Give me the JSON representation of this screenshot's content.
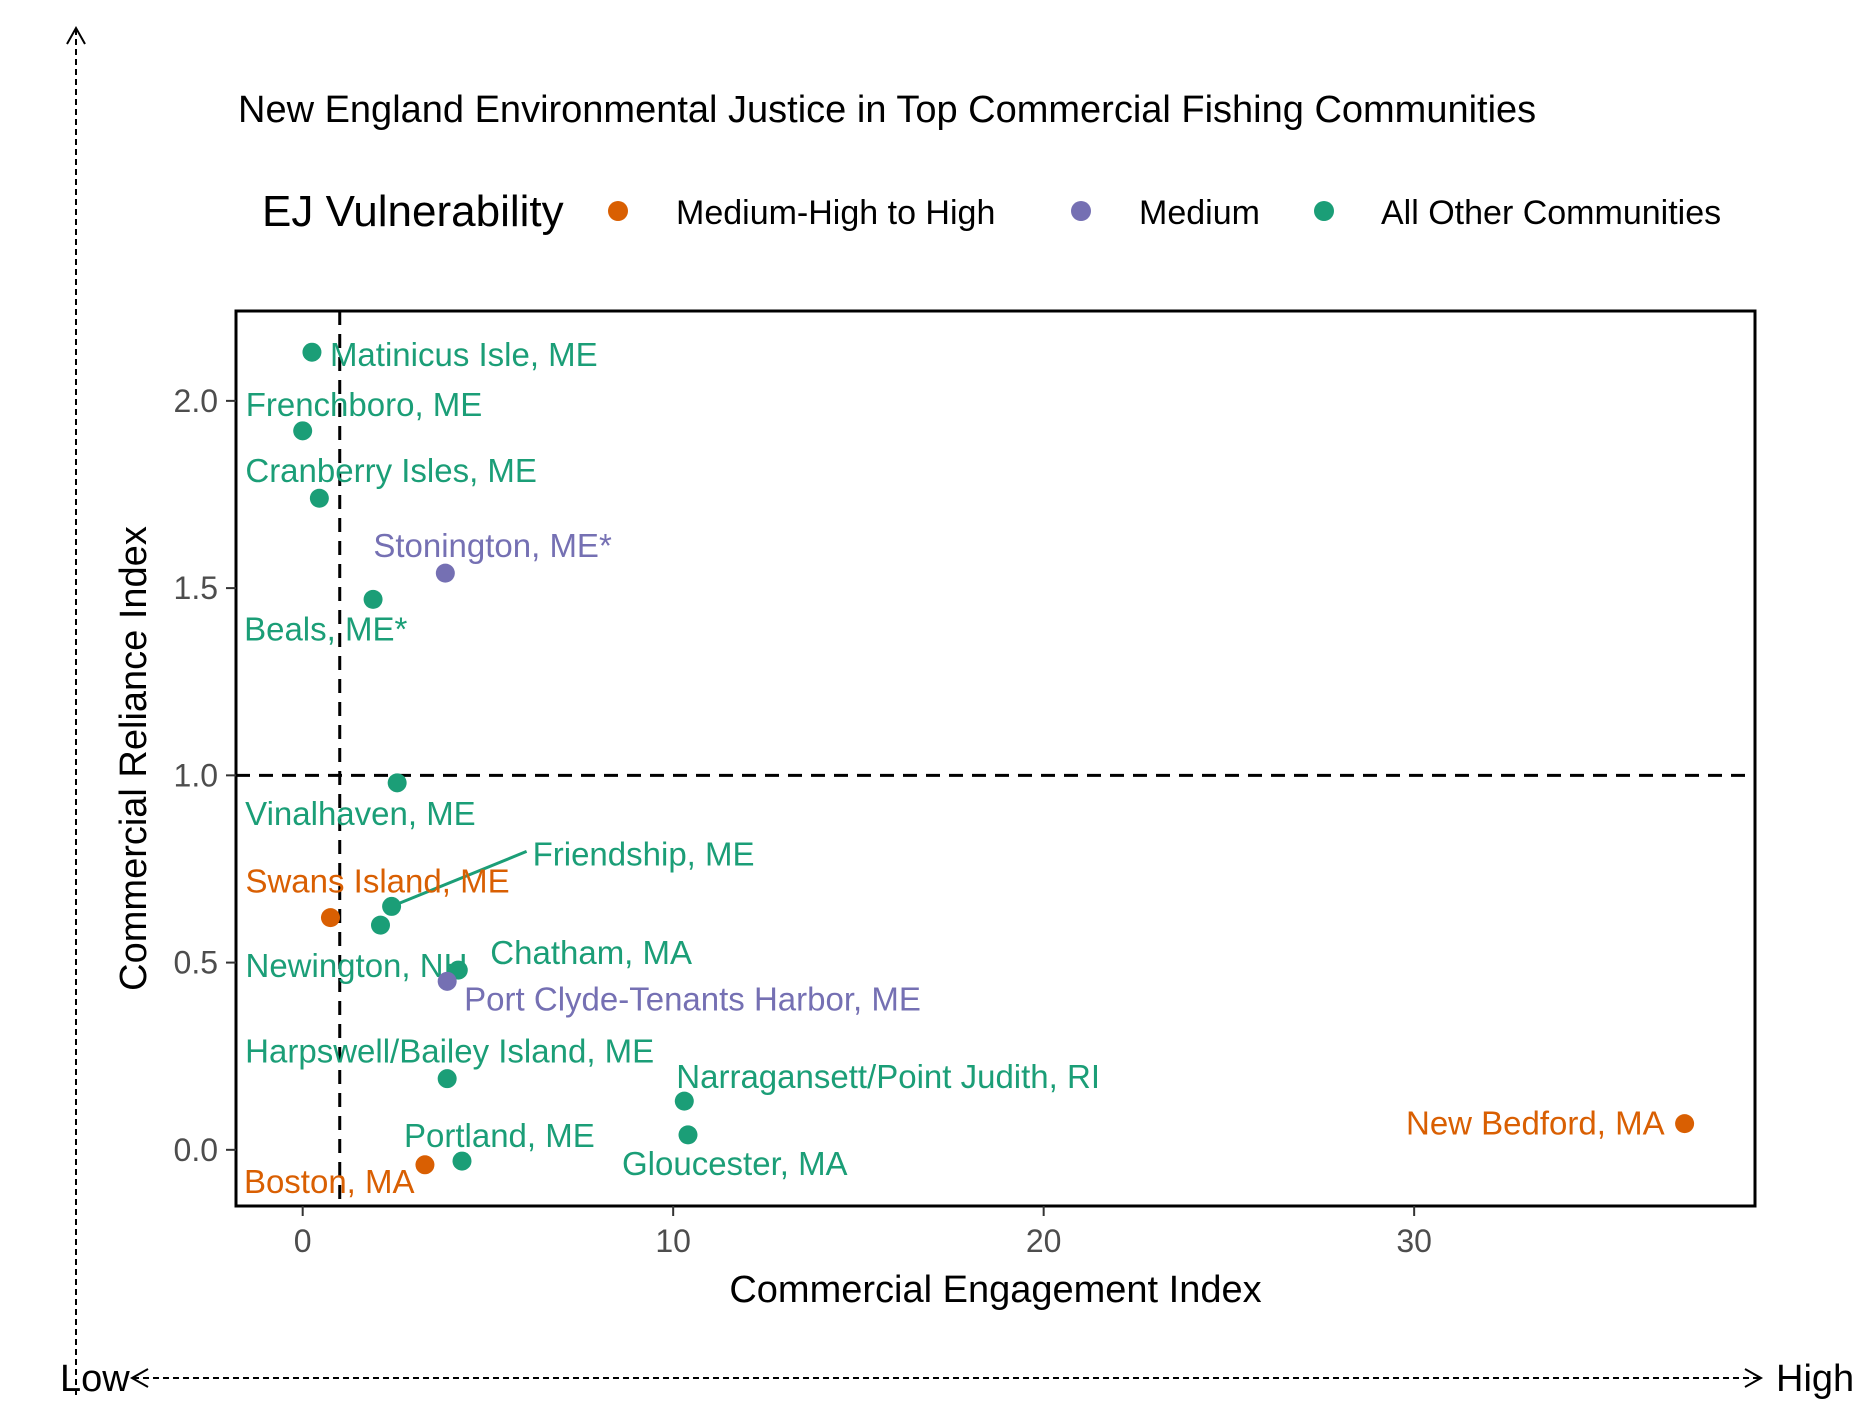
{
  "chart_data": {
    "type": "scatter",
    "title": "New England Environmental Justice in Top Commercial Fishing Communities",
    "xlabel": "Commercial Engagement Index",
    "ylabel": "Commercial Reliance Index",
    "xlim": [
      -1.8,
      39.2
    ],
    "ylim": [
      -0.15,
      2.24
    ],
    "x_ticks": [
      0,
      10,
      20,
      30
    ],
    "y_ticks": [
      0.0,
      0.5,
      1.0,
      1.5,
      2.0
    ],
    "x_tick_labels": [
      "0",
      "10",
      "20",
      "30"
    ],
    "y_tick_labels": [
      "0.0",
      "0.5",
      "1.0",
      "1.5",
      "2.0"
    ],
    "reference_lines": {
      "vertical_x": 1,
      "horizontal_y": 1
    },
    "grid": false,
    "legend": {
      "position": "top",
      "title": "EJ Vulnerability",
      "entries": [
        {
          "key": "high",
          "label": "Medium-High to High",
          "color": "#D95F02"
        },
        {
          "key": "medium",
          "label": "Medium",
          "color": "#7570B3"
        },
        {
          "key": "other",
          "label": "All Other Communities",
          "color": "#1B9E77"
        }
      ]
    },
    "points": [
      {
        "label": "Matinicus Isle, ME",
        "x": 0.25,
        "y": 2.13,
        "group": "other"
      },
      {
        "label": "Frenchboro, ME",
        "x": 0.0,
        "y": 1.92,
        "group": "other"
      },
      {
        "label": "Cranberry Isles, ME",
        "x": 0.45,
        "y": 1.74,
        "group": "other"
      },
      {
        "label": "Stonington, ME*",
        "x": 3.85,
        "y": 1.54,
        "group": "medium"
      },
      {
        "label": "Beals, ME*",
        "x": 1.9,
        "y": 1.47,
        "group": "other"
      },
      {
        "label": "Vinalhaven, ME",
        "x": 2.55,
        "y": 0.98,
        "group": "other"
      },
      {
        "label": "Friendship, ME",
        "x": 2.4,
        "y": 0.65,
        "group": "other"
      },
      {
        "label": "Swans Island, ME",
        "x": 0.75,
        "y": 0.62,
        "group": "high"
      },
      {
        "label": "Newington, NH",
        "x": 2.1,
        "y": 0.6,
        "group": "other"
      },
      {
        "label": "Chatham, MA",
        "x": 4.2,
        "y": 0.48,
        "group": "other"
      },
      {
        "label": "Port Clyde-Tenants Harbor, ME",
        "x": 3.9,
        "y": 0.45,
        "group": "medium"
      },
      {
        "label": "Harpswell/Bailey Island, ME",
        "x": 3.9,
        "y": 0.19,
        "group": "other"
      },
      {
        "label": "Narragansett/Point Judith, RI",
        "x": 10.3,
        "y": 0.13,
        "group": "other"
      },
      {
        "label": "New Bedford, MA",
        "x": 37.3,
        "y": 0.07,
        "group": "high"
      },
      {
        "label": "Gloucester, MA",
        "x": 10.4,
        "y": 0.04,
        "group": "other"
      },
      {
        "label": "Portland, ME",
        "x": 4.3,
        "y": -0.03,
        "group": "other"
      },
      {
        "label": "Boston, MA",
        "x": 3.3,
        "y": -0.04,
        "group": "high"
      }
    ]
  },
  "outer_axes": {
    "x_low": "Low",
    "x_high": "High"
  }
}
